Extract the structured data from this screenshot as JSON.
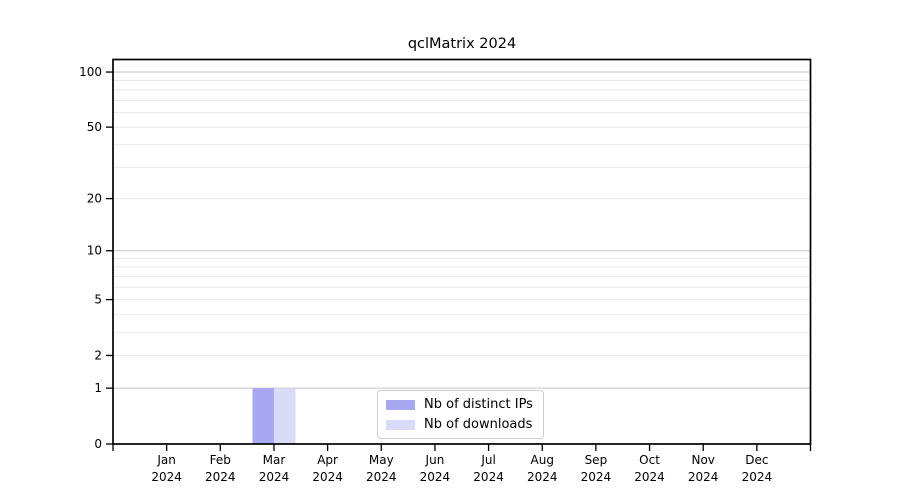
{
  "figure": {
    "background_color": "#ffffff"
  },
  "chart_data": {
    "type": "bar",
    "title": "qclMatrix 2024",
    "xlabel": "",
    "ylabel": "",
    "categories": [
      {
        "month": "Jan",
        "year": "2024"
      },
      {
        "month": "Feb",
        "year": "2024"
      },
      {
        "month": "Mar",
        "year": "2024"
      },
      {
        "month": "Apr",
        "year": "2024"
      },
      {
        "month": "May",
        "year": "2024"
      },
      {
        "month": "Jun",
        "year": "2024"
      },
      {
        "month": "Jul",
        "year": "2024"
      },
      {
        "month": "Aug",
        "year": "2024"
      },
      {
        "month": "Sep",
        "year": "2024"
      },
      {
        "month": "Oct",
        "year": "2024"
      },
      {
        "month": "Nov",
        "year": "2024"
      },
      {
        "month": "Dec",
        "year": "2024"
      }
    ],
    "series": [
      {
        "name": "Nb of distinct IPs",
        "color": "#a8a8f2",
        "values": [
          0,
          0,
          1,
          0,
          0,
          0,
          0,
          0,
          0,
          0,
          0,
          0
        ]
      },
      {
        "name": "Nb of downloads",
        "color": "#d9d9f8",
        "values": [
          0,
          0,
          1,
          0,
          0,
          0,
          0,
          0,
          0,
          0,
          0,
          0
        ]
      }
    ],
    "y_axis": {
      "scale": "log1p",
      "ylim": [
        0,
        117
      ],
      "tick_values": [
        0,
        1,
        2,
        5,
        10,
        20,
        50,
        100
      ],
      "tick_labels": [
        "0",
        "1",
        "2",
        "5",
        "10",
        "20",
        "50",
        "100"
      ],
      "gridlines_major": [
        1,
        10,
        100
      ],
      "gridlines_minor": [
        2,
        3,
        4,
        5,
        6,
        7,
        8,
        9,
        20,
        30,
        40,
        50,
        60,
        70,
        80,
        90
      ],
      "grid_major_color": "#c3c3c3",
      "grid_minor_color": "#e7e7e7"
    },
    "legend": {
      "position": "lower center",
      "border_color": "#cccccc"
    },
    "grid": true,
    "axes_color": "#000000",
    "tick_label_color": "#000000"
  }
}
